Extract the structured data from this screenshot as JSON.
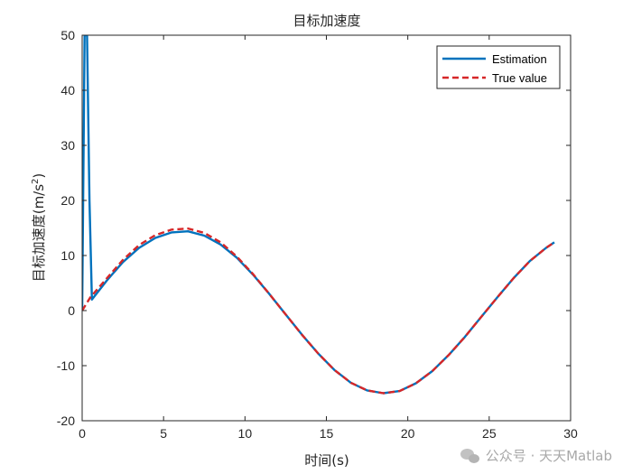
{
  "chart_data": {
    "type": "line",
    "title": "目标加速度",
    "xlabel": "时间(s)",
    "ylabel_main": "目标加速度(m/s",
    "ylabel_sup": "2",
    "ylabel_tail": ")",
    "xlim": [
      0,
      30
    ],
    "ylim": [
      -20,
      50
    ],
    "xticks": [
      0,
      5,
      10,
      15,
      20,
      25,
      30
    ],
    "yticks": [
      -20,
      -10,
      0,
      10,
      20,
      30,
      40,
      50
    ],
    "grid": false,
    "legend_position": "top-right",
    "series": [
      {
        "name": "Estimation",
        "color": "#0072BD",
        "style": "solid",
        "x": [
          0,
          0.15,
          0.3,
          0.45,
          0.6,
          1.5,
          2.5,
          3.5,
          4.5,
          5.5,
          6.5,
          7.5,
          8.5,
          9.5,
          10.5,
          11.5,
          12.5,
          13.5,
          14.5,
          15.5,
          16.5,
          17.5,
          18.5,
          19.5,
          20.5,
          21.5,
          22.5,
          23.5,
          24.5,
          25.5,
          26.5,
          27.5,
          28.5,
          29
        ],
        "y": [
          0,
          50,
          50,
          20,
          2,
          5.4,
          8.8,
          11.4,
          13.2,
          14.2,
          14.4,
          13.6,
          12.0,
          9.6,
          6.5,
          3.0,
          -0.7,
          -4.4,
          -7.8,
          -10.8,
          -13.1,
          -14.5,
          -15.0,
          -14.6,
          -13.2,
          -11.0,
          -8.1,
          -4.8,
          -1.2,
          2.4,
          5.9,
          9.0,
          11.4,
          12.4
        ]
      },
      {
        "name": "True value",
        "color": "#D62728",
        "style": "dashed",
        "x": [
          0,
          0.5,
          1.5,
          2.5,
          3.5,
          4.5,
          5.5,
          6.5,
          7.5,
          8.5,
          9.5,
          10.5,
          11.5,
          12.5,
          13.5,
          14.5,
          15.5,
          16.5,
          17.5,
          18.5,
          19.5,
          20.5,
          21.5,
          22.5,
          23.5,
          24.5,
          25.5,
          26.5,
          27.5,
          28.5,
          29
        ],
        "y": [
          0,
          2.4,
          5.8,
          9.2,
          11.9,
          13.7,
          14.7,
          14.9,
          14.1,
          12.4,
          9.8,
          6.6,
          3.0,
          -0.7,
          -4.4,
          -7.8,
          -10.8,
          -13.1,
          -14.5,
          -15.0,
          -14.6,
          -13.2,
          -11.0,
          -8.1,
          -4.8,
          -1.2,
          2.4,
          5.9,
          9.0,
          11.4,
          12.4
        ]
      }
    ]
  },
  "watermark": {
    "text": "公众号 · 天天Matlab",
    "icon": "wechat-icon"
  }
}
